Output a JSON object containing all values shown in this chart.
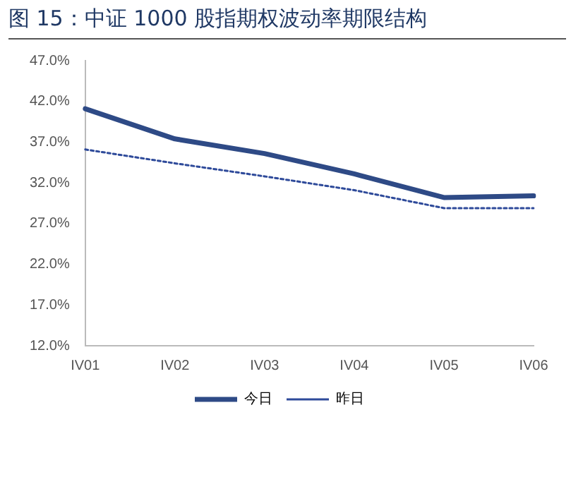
{
  "chart_data": {
    "type": "line",
    "title": "图 15：中证 1000 股指期权波动率期限结构",
    "categories": [
      "IV01",
      "IV02",
      "IV03",
      "IV04",
      "IV05",
      "IV06"
    ],
    "series": [
      {
        "name": "今日",
        "color": "#2e4a86",
        "values": [
          41.1,
          37.4,
          35.6,
          33.1,
          30.2,
          30.4
        ],
        "line_style": "solid"
      },
      {
        "name": "昨日",
        "color": "#2e4a9a",
        "values": [
          36.1,
          34.4,
          32.8,
          31.1,
          28.9,
          28.9
        ],
        "line_style": "dotted"
      }
    ],
    "ylim": [
      12,
      47
    ],
    "yticks": [
      {
        "value": 12,
        "label": "12.0%"
      },
      {
        "value": 17,
        "label": "17.0%"
      },
      {
        "value": 22,
        "label": "22.0%"
      },
      {
        "value": 27,
        "label": "27.0%"
      },
      {
        "value": 32,
        "label": "32.0%"
      },
      {
        "value": 37,
        "label": "37.0%"
      },
      {
        "value": 42,
        "label": "42.0%"
      },
      {
        "value": 47,
        "label": "47.0%"
      }
    ],
    "grid": false,
    "legend": "bottom",
    "marker": "none"
  }
}
